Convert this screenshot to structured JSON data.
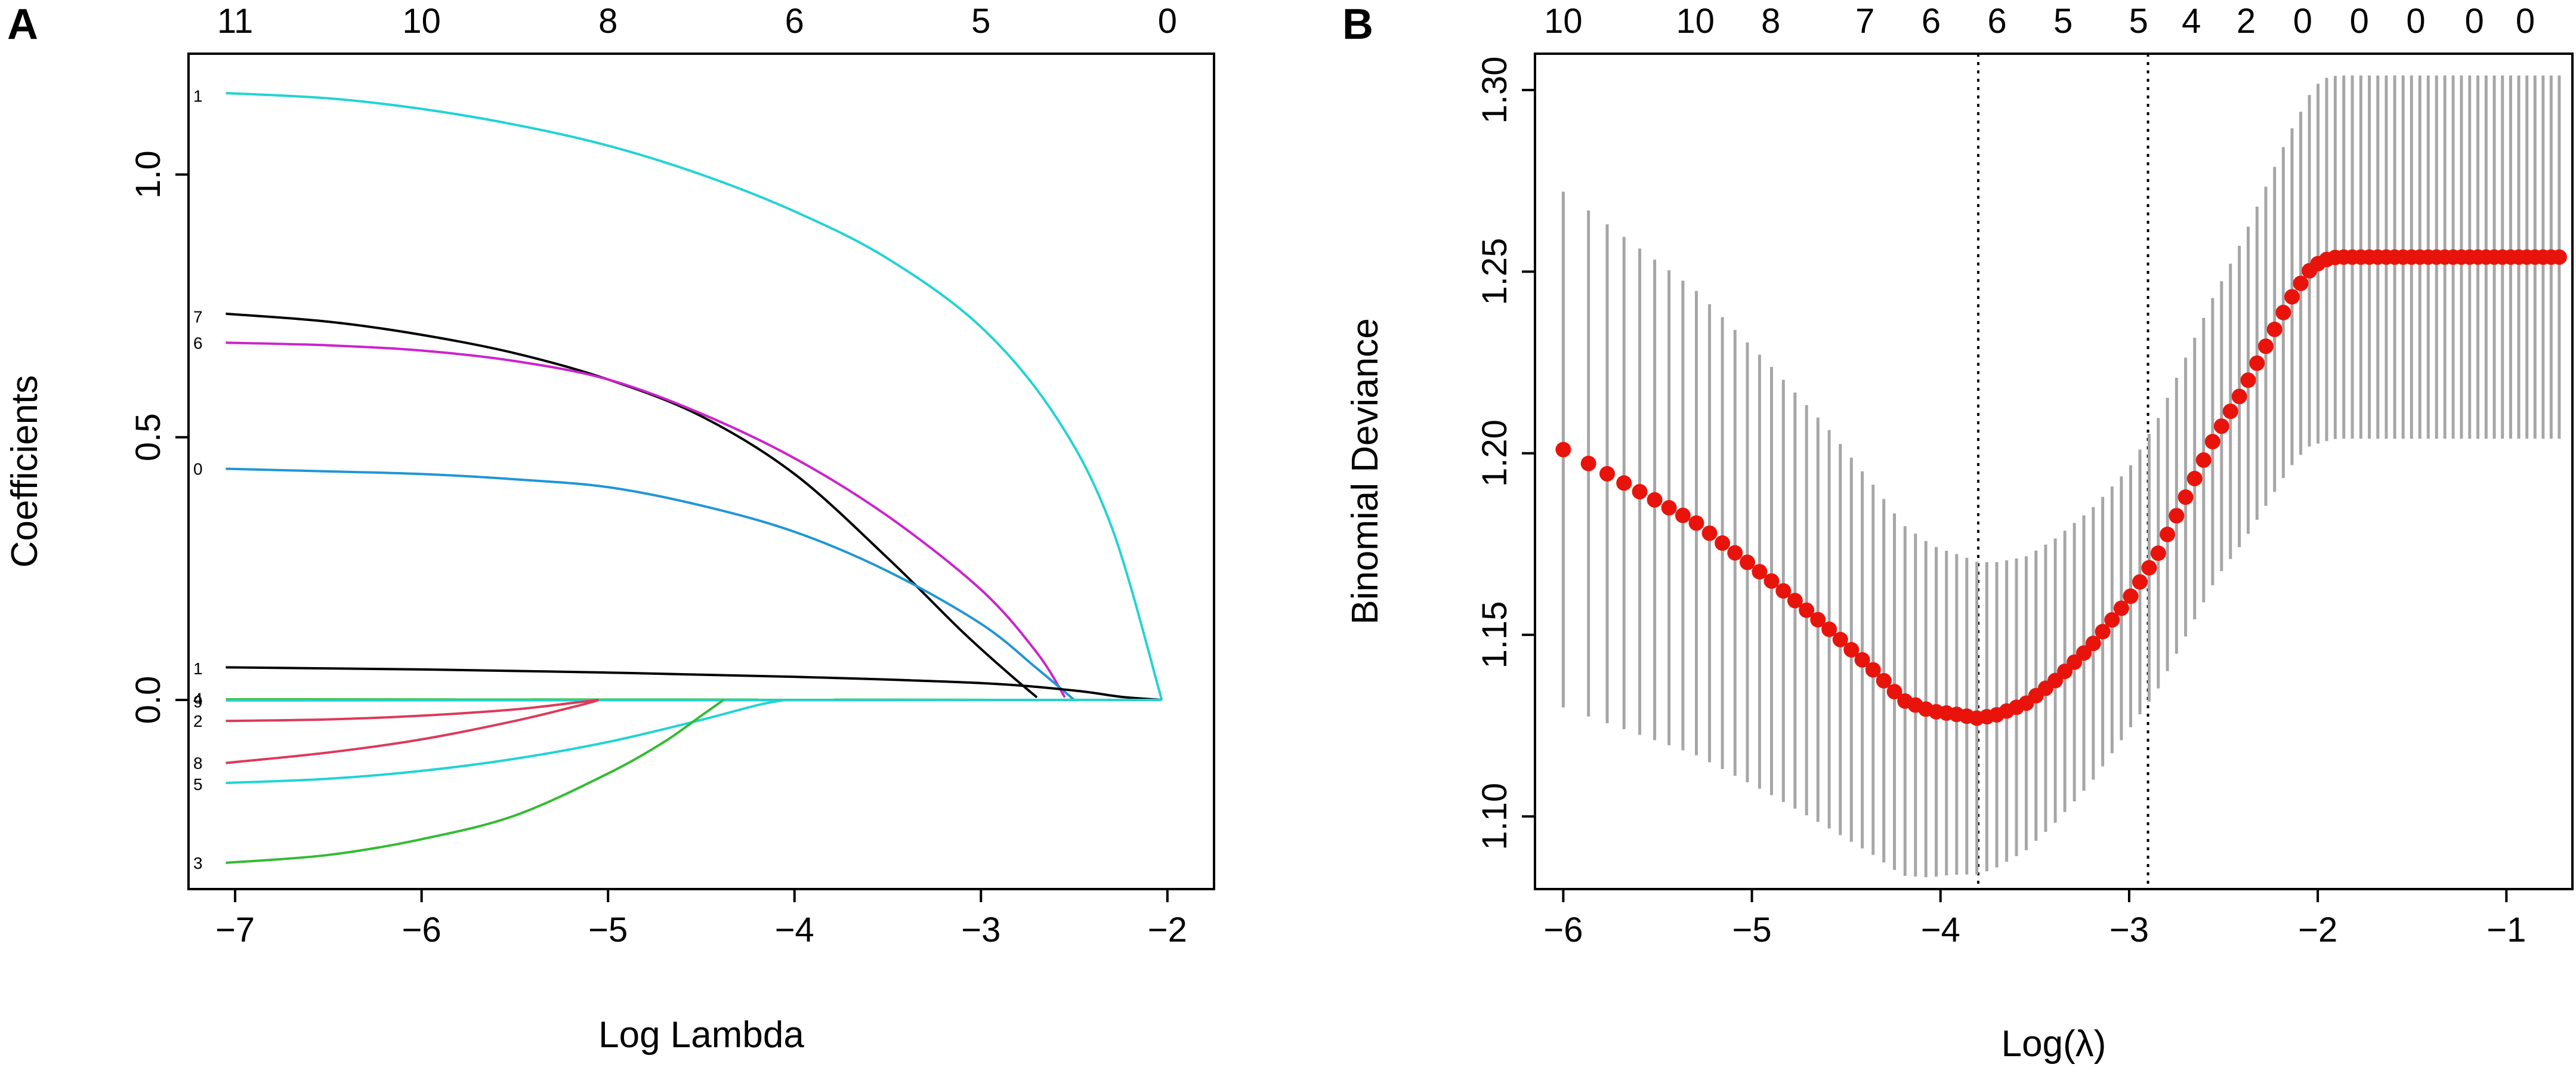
{
  "panels": {
    "a_label": "A",
    "b_label": "B"
  },
  "chart_data": [
    {
      "type": "line",
      "title": "",
      "xlabel": "Log Lambda",
      "ylabel": "Coefficients",
      "xlim": [
        -7.25,
        -1.75
      ],
      "ylim": [
        -0.36,
        1.23
      ],
      "x_ticks": [
        -7,
        -6,
        -5,
        -4,
        -3,
        -2
      ],
      "x_tick_labels": [
        "−7",
        "−6",
        "−5",
        "−4",
        "−3",
        "−2"
      ],
      "y_ticks": [
        0.0,
        0.5,
        1.0
      ],
      "y_tick_labels": [
        "0.0",
        "0.5",
        "1.0"
      ],
      "top_axis": {
        "positions": [
          -7,
          -6,
          -5,
          -4,
          -3,
          -2
        ],
        "labels": [
          "11",
          "10",
          "8",
          "6",
          "5",
          "0"
        ]
      },
      "series": [
        {
          "name": "1",
          "label_y": 1.15,
          "color": "#22d3d3",
          "x": [
            -7.05,
            -6.5,
            -6,
            -5.5,
            -5,
            -4.5,
            -4,
            -3.5,
            -3,
            -2.6,
            -2.3,
            -2.03
          ],
          "y": [
            1.155,
            1.145,
            1.125,
            1.095,
            1.055,
            1.0,
            0.93,
            0.84,
            0.71,
            0.54,
            0.33,
            0.0
          ]
        },
        {
          "name": "7",
          "label_y": 0.73,
          "color": "#000000",
          "x": [
            -7.05,
            -6.5,
            -6,
            -5.5,
            -5,
            -4.5,
            -4,
            -3.5,
            -3.1,
            -2.85,
            -2.7
          ],
          "y": [
            0.735,
            0.72,
            0.695,
            0.66,
            0.61,
            0.54,
            0.43,
            0.27,
            0.13,
            0.05,
            0.005
          ]
        },
        {
          "name": "6",
          "label_y": 0.68,
          "color": "#cc22cc",
          "x": [
            -7.05,
            -6.5,
            -6,
            -5.5,
            -5,
            -4.5,
            -4,
            -3.5,
            -3,
            -2.7,
            -2.55
          ],
          "y": [
            0.68,
            0.675,
            0.665,
            0.645,
            0.61,
            0.545,
            0.46,
            0.35,
            0.21,
            0.09,
            0.005
          ]
        },
        {
          "name": "0",
          "label_y": 0.44,
          "color": "#2096d6",
          "x": [
            -7.05,
            -6.5,
            -6,
            -5.5,
            -5,
            -4.5,
            -4,
            -3.5,
            -3,
            -2.7,
            -2.5
          ],
          "y": [
            0.44,
            0.435,
            0.43,
            0.42,
            0.405,
            0.37,
            0.32,
            0.245,
            0.145,
            0.06,
            0.0
          ]
        },
        {
          "name": "1",
          "label_y": 0.06,
          "color": "#000000",
          "x": [
            -7.05,
            -6,
            -5,
            -4,
            -3,
            -2.5,
            -2.25,
            -2.03
          ],
          "y": [
            0.062,
            0.058,
            0.052,
            0.044,
            0.032,
            0.018,
            0.006,
            0.0
          ]
        },
        {
          "name": "4",
          "label_y": 0.003,
          "color": "#22bb22",
          "x": [
            -7.05,
            -2.03
          ],
          "y": [
            0.001,
            0.0
          ]
        },
        {
          "name": "9",
          "label_y": -0.003,
          "color": "#22d3d3",
          "x": [
            -7.05,
            -2.03
          ],
          "y": [
            -0.001,
            0.0
          ]
        },
        {
          "name": "2",
          "label_y": -0.04,
          "color": "#dd3a5a",
          "x": [
            -7.05,
            -6.5,
            -6,
            -5.5,
            -5.15,
            -5.05
          ],
          "y": [
            -0.04,
            -0.037,
            -0.03,
            -0.018,
            -0.004,
            0.0
          ]
        },
        {
          "name": "8",
          "label_y": -0.12,
          "color": "#dd3a5a",
          "x": [
            -7.05,
            -6.5,
            -6,
            -5.5,
            -5.15,
            -5.05
          ],
          "y": [
            -0.12,
            -0.1,
            -0.075,
            -0.04,
            -0.01,
            0.0
          ]
        },
        {
          "name": "5",
          "label_y": -0.16,
          "color": "#22d3d3",
          "x": [
            -7.05,
            -6.5,
            -6,
            -5.5,
            -5,
            -4.5,
            -4.2,
            -4.05
          ],
          "y": [
            -0.158,
            -0.15,
            -0.135,
            -0.112,
            -0.08,
            -0.038,
            -0.01,
            0.0
          ]
        },
        {
          "name": "3",
          "label_y": -0.31,
          "color": "#33bb33",
          "x": [
            -7.05,
            -6.5,
            -6,
            -5.5,
            -5,
            -4.7,
            -4.5,
            -4.38
          ],
          "y": [
            -0.31,
            -0.295,
            -0.265,
            -0.22,
            -0.14,
            -0.08,
            -0.03,
            0.0
          ]
        }
      ]
    },
    {
      "type": "scatter",
      "title": "",
      "xlabel": "Log(λ)",
      "ylabel": "Binomial Deviance",
      "xlim": [
        -6.15,
        -0.65
      ],
      "ylim": [
        1.08,
        1.31
      ],
      "x_ticks": [
        -6,
        -5,
        -4,
        -3,
        -2,
        -1
      ],
      "x_tick_labels": [
        "−6",
        "−5",
        "−4",
        "−3",
        "−2",
        "−1"
      ],
      "y_ticks": [
        1.1,
        1.15,
        1.2,
        1.25,
        1.3
      ],
      "y_tick_labels": [
        "1.10",
        "1.15",
        "1.20",
        "1.25",
        "1.30"
      ],
      "top_axis": {
        "positions": [
          -6.0,
          -5.3,
          -4.9,
          -4.4,
          -4.05,
          -3.7,
          -3.35,
          -2.95,
          -2.67,
          -2.38,
          -2.08,
          -1.78,
          -1.48,
          -1.17,
          -0.9
        ],
        "labels": [
          "10",
          "10",
          "8",
          "7",
          "6",
          "6",
          "5",
          "5",
          "4",
          "2",
          "0",
          "0",
          "0",
          "0",
          "0"
        ]
      },
      "vlines": [
        -3.8,
        -2.9
      ],
      "point_color": "#e8140c",
      "errorbar_color": "#a6a6a6",
      "lambda_min": -6.0,
      "lambda_max": -0.72,
      "n_points": 100,
      "deviance_curve": {
        "x": [
          -6.0,
          -5.3,
          -4.9,
          -4.6,
          -4.35,
          -4.2,
          -4.05,
          -3.9,
          -3.8,
          -3.7,
          -3.55,
          -3.4,
          -3.2,
          -3.0,
          -2.85,
          -2.7,
          -2.55,
          -2.4,
          -2.25,
          -2.15,
          -2.05,
          -1.98,
          -1.9,
          -0.72
        ],
        "y": [
          1.201,
          1.181,
          1.165,
          1.152,
          1.14,
          1.132,
          1.129,
          1.128,
          1.127,
          1.128,
          1.131,
          1.137,
          1.147,
          1.16,
          1.172,
          1.188,
          1.204,
          1.217,
          1.232,
          1.242,
          1.25,
          1.253,
          1.254,
          1.254
        ]
      },
      "halfwidth_curve": {
        "x": [
          -6.0,
          -5.3,
          -4.9,
          -4.6,
          -4.3,
          -4.0,
          -3.5,
          -3.0,
          -2.5,
          -2.1,
          -1.98,
          -0.72
        ],
        "y": [
          0.071,
          0.064,
          0.059,
          0.055,
          0.05,
          0.045,
          0.04,
          0.036,
          0.04,
          0.047,
          0.05,
          0.05
        ]
      }
    }
  ]
}
